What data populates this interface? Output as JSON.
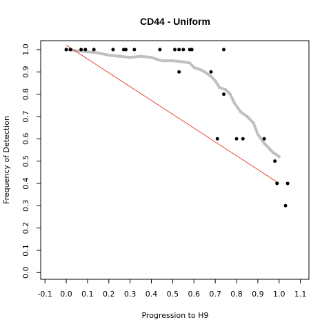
{
  "chart_data": {
    "type": "scatter",
    "title": "CD44 - Uniform",
    "xlabel": "Progression to H9",
    "ylabel": "Frequency of Detection",
    "xlim": [
      -0.12,
      1.14
    ],
    "ylim": [
      -0.03,
      1.04
    ],
    "xticks": [
      "-0.1",
      "0.0",
      "0.1",
      "0.2",
      "0.3",
      "0.4",
      "0.5",
      "0.6",
      "0.7",
      "0.8",
      "0.9",
      "1.0",
      "1.1"
    ],
    "yticks": [
      "0.0",
      "0.1",
      "0.2",
      "0.3",
      "0.4",
      "0.5",
      "0.6",
      "0.7",
      "0.8",
      "0.9",
      "1.0"
    ],
    "grid": false,
    "colors": {
      "points": "#000000",
      "trend": "#c0c0c0",
      "fit_line": "#e8412f"
    },
    "series": [
      {
        "kind": "points",
        "x": [
          0.0,
          0.02,
          0.07,
          0.09,
          0.13,
          0.22,
          0.27,
          0.28,
          0.32,
          0.44,
          0.51,
          0.53,
          0.55,
          0.58,
          0.59,
          0.53,
          0.68,
          0.74,
          0.74,
          0.71,
          0.8,
          0.83,
          0.93,
          0.98,
          0.99,
          1.04,
          1.03
        ],
        "y": [
          1.0,
          1.0,
          1.0,
          1.0,
          1.0,
          1.0,
          1.0,
          1.0,
          1.0,
          1.0,
          1.0,
          1.0,
          1.0,
          1.0,
          1.0,
          0.9,
          0.9,
          1.0,
          0.8,
          0.6,
          0.6,
          0.6,
          0.6,
          0.5,
          0.4,
          0.4,
          0.3
        ]
      },
      {
        "kind": "trend",
        "x": [
          0.0,
          0.05,
          0.1,
          0.15,
          0.2,
          0.25,
          0.3,
          0.35,
          0.4,
          0.43,
          0.45,
          0.5,
          0.55,
          0.58,
          0.6,
          0.63,
          0.65,
          0.68,
          0.7,
          0.72,
          0.75,
          0.77,
          0.79,
          0.82,
          0.85,
          0.88,
          0.9,
          0.93,
          0.95,
          0.97,
          1.0
        ],
        "y": [
          1.0,
          0.995,
          0.99,
          0.985,
          0.975,
          0.97,
          0.965,
          0.97,
          0.965,
          0.955,
          0.95,
          0.95,
          0.945,
          0.94,
          0.92,
          0.91,
          0.9,
          0.88,
          0.86,
          0.83,
          0.82,
          0.8,
          0.76,
          0.72,
          0.7,
          0.67,
          0.62,
          0.58,
          0.56,
          0.54,
          0.52
        ]
      },
      {
        "kind": "fit-line",
        "x": [
          0.0,
          1.0
        ],
        "y": [
          1.02,
          0.4
        ]
      }
    ]
  }
}
